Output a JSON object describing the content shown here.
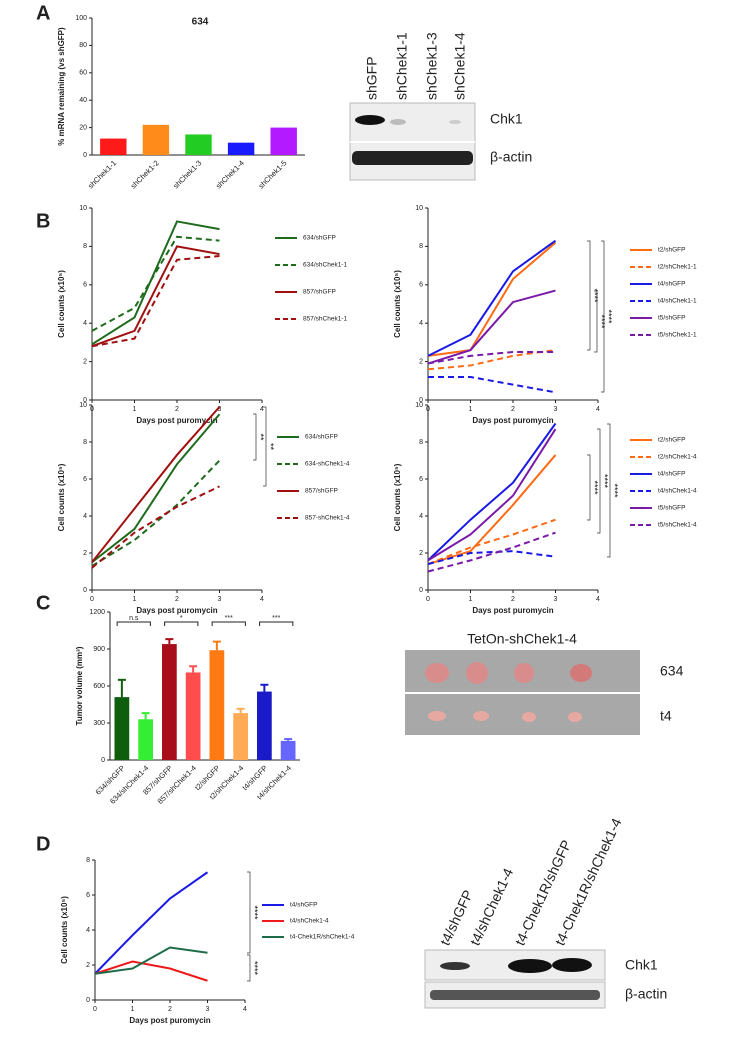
{
  "panels": [
    "A",
    "B",
    "C",
    "D"
  ],
  "chart_data": [
    {
      "type": "bar",
      "title": "634",
      "ylabel": "% mRNA remaining (vs shGFP)",
      "categories": [
        "shChek1-1",
        "shChek1-2",
        "shChek1-3",
        "shChek1-4",
        "shChek1-5"
      ],
      "values": [
        12,
        22,
        15,
        9,
        20
      ],
      "colors": [
        "#ff1a1a",
        "#ff8c1a",
        "#22cc22",
        "#1a1aff",
        "#b31aff"
      ],
      "ylim": [
        0,
        100
      ],
      "yticks": [
        0,
        20,
        40,
        60,
        80,
        100
      ]
    },
    {
      "type": "line",
      "xlabel": "Days post puromycin",
      "ylabel": "Cell counts (x10⁵)",
      "x": [
        0,
        1,
        2,
        3
      ],
      "xlim": [
        0,
        4
      ],
      "xticks": [
        0,
        1,
        2,
        3,
        4
      ],
      "ylim": [
        0,
        10
      ],
      "yticks": [
        0,
        2,
        4,
        6,
        8,
        10
      ],
      "series": [
        {
          "name": "634/shGFP",
          "color": "#1e6b1e",
          "dashed": false,
          "values": [
            2.9,
            4.3,
            9.3,
            8.9
          ]
        },
        {
          "name": "634/shChek1-1",
          "color": "#1e6b1e",
          "dashed": true,
          "values": [
            3.6,
            4.8,
            8.5,
            8.3
          ]
        },
        {
          "name": "857/shGFP",
          "color": "#a01010",
          "dashed": false,
          "values": [
            2.8,
            3.6,
            8.0,
            7.6
          ]
        },
        {
          "name": "857/shChek1-1",
          "color": "#a01010",
          "dashed": true,
          "values": [
            2.8,
            3.2,
            7.3,
            7.5
          ]
        }
      ]
    },
    {
      "type": "line",
      "xlabel": "Days post puromycin",
      "ylabel": "Cell counts (x10⁵)",
      "x": [
        0,
        1,
        2,
        3
      ],
      "xlim": [
        0,
        4
      ],
      "xticks": [
        0,
        1,
        2,
        3,
        4
      ],
      "ylim": [
        0,
        10
      ],
      "yticks": [
        0,
        2,
        4,
        6,
        8,
        10
      ],
      "series": [
        {
          "name": "t2/shGFP",
          "color": "#ff6a13",
          "dashed": false,
          "values": [
            2.3,
            2.6,
            6.3,
            8.2
          ]
        },
        {
          "name": "t2/shChek1-1",
          "color": "#ff6a13",
          "dashed": true,
          "values": [
            1.6,
            1.8,
            2.3,
            2.6
          ]
        },
        {
          "name": "t4/shGFP",
          "color": "#1a1ae6",
          "dashed": false,
          "values": [
            2.3,
            3.4,
            6.7,
            8.3
          ]
        },
        {
          "name": "t4/shChek1-1",
          "color": "#1a1ae6",
          "dashed": true,
          "values": [
            1.2,
            1.2,
            0.8,
            0.4
          ]
        },
        {
          "name": "t5/shGFP",
          "color": "#7a1aa8",
          "dashed": false,
          "values": [
            1.9,
            2.6,
            5.1,
            5.7
          ]
        },
        {
          "name": "t5/shChek1-1",
          "color": "#7a1aa8",
          "dashed": true,
          "values": [
            1.9,
            2.3,
            2.5,
            2.5
          ]
        }
      ],
      "annotations": [
        "****",
        "****",
        "****"
      ]
    },
    {
      "type": "line",
      "xlabel": "Days post puromycin",
      "ylabel": "Cell counts (x10⁵)",
      "x": [
        0,
        1,
        2,
        3
      ],
      "xlim": [
        0,
        4
      ],
      "xticks": [
        0,
        1,
        2,
        3,
        4
      ],
      "ylim": [
        0,
        10
      ],
      "yticks": [
        0,
        2,
        4,
        6,
        8,
        10
      ],
      "series": [
        {
          "name": "634/shGFP",
          "color": "#1e6b1e",
          "dashed": false,
          "values": [
            1.5,
            3.3,
            6.8,
            9.5
          ]
        },
        {
          "name": "634-shChek1-4",
          "color": "#1e6b1e",
          "dashed": true,
          "values": [
            1.3,
            2.7,
            4.6,
            7.0
          ]
        },
        {
          "name": "857/shGFP",
          "color": "#a01010",
          "dashed": false,
          "values": [
            1.5,
            4.4,
            7.3,
            9.9
          ]
        },
        {
          "name": "857-shChek1-4",
          "color": "#a01010",
          "dashed": true,
          "values": [
            1.2,
            3.1,
            4.5,
            5.6
          ]
        }
      ],
      "annotations": [
        "**",
        "**"
      ]
    },
    {
      "type": "line",
      "xlabel": "Days post puromycin",
      "ylabel": "Cell counts (x10⁵)",
      "x": [
        0,
        1,
        2,
        3
      ],
      "xlim": [
        0,
        4
      ],
      "xticks": [
        0,
        1,
        2,
        3,
        4
      ],
      "ylim": [
        0,
        10
      ],
      "yticks": [
        0,
        2,
        4,
        6,
        8,
        10
      ],
      "series": [
        {
          "name": "t2/shGFP",
          "color": "#ff6a13",
          "dashed": false,
          "values": [
            1.4,
            2.1,
            4.6,
            7.3
          ]
        },
        {
          "name": "t2/shChek1-4",
          "color": "#ff6a13",
          "dashed": true,
          "values": [
            1.4,
            2.3,
            3.0,
            3.8
          ]
        },
        {
          "name": "t4/shGFP",
          "color": "#1a1ae6",
          "dashed": false,
          "values": [
            1.6,
            3.8,
            5.8,
            9.0
          ]
        },
        {
          "name": "t4/shChek1-4",
          "color": "#1a1ae6",
          "dashed": true,
          "values": [
            1.4,
            2.0,
            2.1,
            1.8
          ]
        },
        {
          "name": "t5/shGFP",
          "color": "#7a1aa8",
          "dashed": false,
          "values": [
            1.6,
            3.0,
            5.1,
            8.7
          ]
        },
        {
          "name": "t5/shChek1-4",
          "color": "#7a1aa8",
          "dashed": true,
          "values": [
            1.0,
            1.6,
            2.3,
            3.1
          ]
        }
      ],
      "annotations": [
        "****",
        "****",
        "****"
      ]
    },
    {
      "type": "bar",
      "ylabel": "Tumor volume (mm³)",
      "categories": [
        "634/shGFP",
        "634/shChek1-4",
        "857/shGFP",
        "857/shChek1-4",
        "t2/shGFP",
        "t2/shChek1-4",
        "t4/shGFP",
        "t4/shChek1-4"
      ],
      "values": [
        510,
        330,
        940,
        710,
        890,
        380,
        555,
        155
      ],
      "errors": [
        140,
        50,
        40,
        50,
        70,
        35,
        55,
        15
      ],
      "colors": [
        "#0e5e0e",
        "#33ee33",
        "#a80d1a",
        "#ff4d4d",
        "#ff7a13",
        "#ffaa55",
        "#1a1ac8",
        "#6666ff"
      ],
      "ylim": [
        0,
        1200
      ],
      "yticks": [
        0,
        300,
        600,
        900,
        1200
      ],
      "annotations": [
        "n.s",
        "*",
        "***",
        "***"
      ]
    },
    {
      "type": "line",
      "xlabel": "Days post puromycin",
      "ylabel": "Cell counts (x10⁵)",
      "x": [
        0,
        1,
        2,
        3
      ],
      "xlim": [
        0,
        4
      ],
      "xticks": [
        0,
        1,
        2,
        3,
        4
      ],
      "ylim": [
        0,
        8
      ],
      "yticks": [
        0,
        2,
        4,
        6,
        8
      ],
      "series": [
        {
          "name": "t4/shGFP",
          "color": "#1a1ae6",
          "dashed": false,
          "values": [
            1.5,
            3.7,
            5.8,
            7.3
          ]
        },
        {
          "name": "t4/shChek1-4",
          "color": "#ee1a1a",
          "dashed": false,
          "values": [
            1.5,
            2.2,
            1.8,
            1.1
          ]
        },
        {
          "name": "t4-Chek1R/shChek1-4",
          "color": "#1e6b4a",
          "dashed": false,
          "values": [
            1.5,
            1.8,
            3.0,
            2.7
          ]
        }
      ],
      "annotations": [
        "****",
        "****"
      ]
    }
  ],
  "blots": [
    {
      "lanes": [
        "shGFP",
        "shChek1-1",
        "shChek1-3",
        "shChek1-4"
      ],
      "rows": [
        "Chk1",
        "β-actin"
      ]
    },
    {
      "lanes": [
        "t4/shGFP",
        "t4/shChek1-4",
        "t4-Chek1R/shGFP",
        "t4-Chek1R/shChek1-4"
      ],
      "rows": [
        "Chk1",
        "β-actin"
      ]
    }
  ],
  "photo": {
    "title": "TetOn-shChek1-4",
    "rows": [
      "634",
      "t4"
    ]
  }
}
